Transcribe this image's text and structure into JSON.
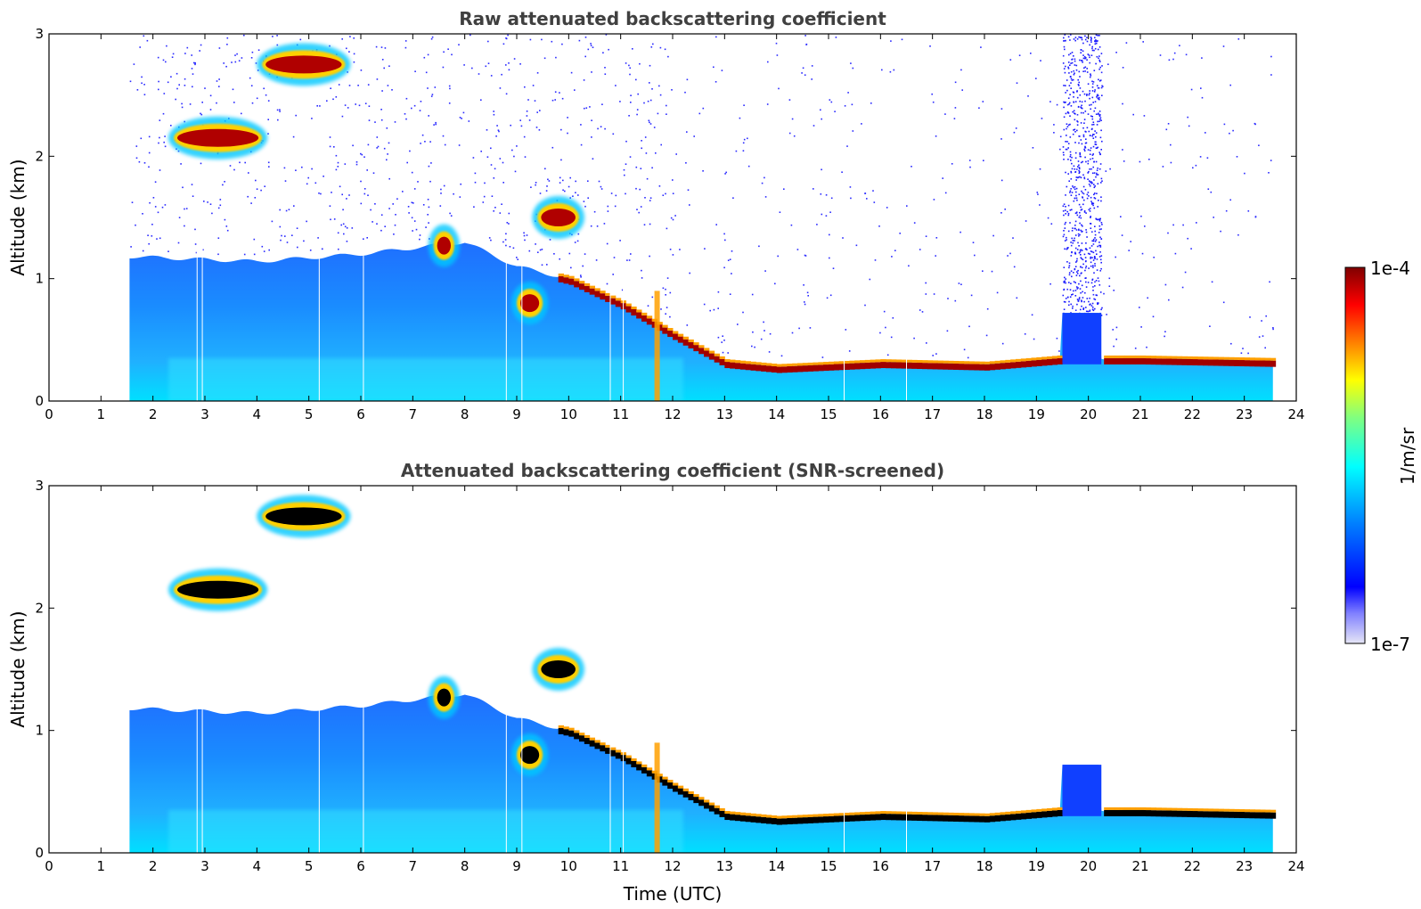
{
  "chart_data": [
    {
      "type": "heatmap",
      "title": "Raw attenuated backscattering coefficient",
      "xlabel": "",
      "ylabel": "Altitude (km)",
      "xlim": [
        0,
        24
      ],
      "ylim": [
        0,
        3
      ],
      "xticks": [
        "0",
        "1",
        "2",
        "3",
        "4",
        "5",
        "6",
        "7",
        "8",
        "9",
        "10",
        "11",
        "12",
        "13",
        "14",
        "15",
        "16",
        "17",
        "18",
        "19",
        "20",
        "21",
        "22",
        "23",
        "24"
      ],
      "yticks": [
        "0",
        "1",
        "2",
        "3"
      ],
      "data_start_time": 1.55,
      "data_end_time": 23.55,
      "boundary_layer_top": [
        {
          "t": 1.6,
          "z": 1.18
        },
        {
          "t": 4.0,
          "z": 1.14
        },
        {
          "t": 6.0,
          "z": 1.2
        },
        {
          "t": 8.0,
          "z": 1.3
        },
        {
          "t": 9.0,
          "z": 1.1
        },
        {
          "t": 10.0,
          "z": 1.0
        },
        {
          "t": 11.0,
          "z": 0.8
        },
        {
          "t": 12.0,
          "z": 0.55
        },
        {
          "t": 13.0,
          "z": 0.32
        },
        {
          "t": 14.0,
          "z": 0.28
        },
        {
          "t": 16.0,
          "z": 0.32
        },
        {
          "t": 18.0,
          "z": 0.3
        },
        {
          "t": 19.4,
          "z": 0.35
        },
        {
          "t": 21.0,
          "z": 0.35
        },
        {
          "t": 23.5,
          "z": 0.33
        }
      ],
      "cloud_layers": [
        {
          "t0": 2.4,
          "t1": 4.1,
          "z": 2.15
        },
        {
          "t0": 4.1,
          "t1": 5.7,
          "z": 2.75
        },
        {
          "t0": 7.4,
          "t1": 7.8,
          "z": 1.27
        },
        {
          "t0": 9.4,
          "t1": 10.2,
          "z": 1.5
        },
        {
          "t0": 9.0,
          "t1": 9.5,
          "z": 0.8
        }
      ],
      "precipitation_event": {
        "t0": 19.5,
        "t1": 20.25
      }
    },
    {
      "type": "heatmap",
      "title": "Attenuated backscattering coefficient (SNR-screened)",
      "xlabel": "Time (UTC)",
      "ylabel": "Altitude (km)",
      "xlim": [
        0,
        24
      ],
      "ylim": [
        0,
        3
      ],
      "xticks": [
        "0",
        "1",
        "2",
        "3",
        "4",
        "5",
        "6",
        "7",
        "8",
        "9",
        "10",
        "11",
        "12",
        "13",
        "14",
        "15",
        "16",
        "17",
        "18",
        "19",
        "20",
        "21",
        "22",
        "23",
        "24"
      ],
      "yticks": [
        "0",
        "1",
        "2",
        "3"
      ]
    }
  ],
  "colorbar": {
    "label": "1/m/sr",
    "max_label": "1e-4",
    "min_label": "1e-7",
    "scale": "log",
    "colormap": "jet",
    "colors": [
      "#e6e6f6",
      "#0000ff",
      "#0080ff",
      "#00ffff",
      "#80ff80",
      "#ffff00",
      "#ff8000",
      "#ff0000",
      "#800000"
    ]
  },
  "colors": {
    "saturated_screened": "#000000",
    "noise": "#2a2aff"
  }
}
